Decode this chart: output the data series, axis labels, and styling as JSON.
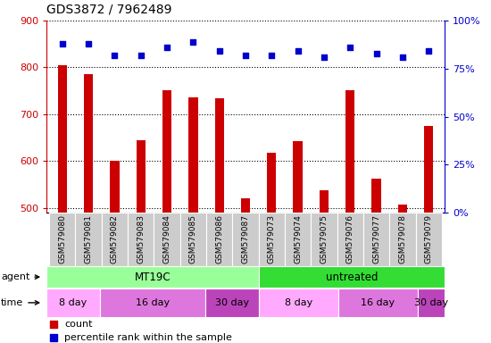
{
  "title": "GDS3872 / 7962489",
  "samples": [
    "GSM579080",
    "GSM579081",
    "GSM579082",
    "GSM579083",
    "GSM579084",
    "GSM579085",
    "GSM579086",
    "GSM579087",
    "GSM579073",
    "GSM579074",
    "GSM579075",
    "GSM579076",
    "GSM579077",
    "GSM579078",
    "GSM579079"
  ],
  "counts": [
    805,
    785,
    600,
    645,
    752,
    737,
    735,
    520,
    618,
    642,
    537,
    752,
    563,
    507,
    675
  ],
  "percentiles": [
    88,
    88,
    82,
    82,
    86,
    89,
    84,
    82,
    82,
    84,
    81,
    86,
    83,
    81,
    84
  ],
  "ylim_left": [
    490,
    900
  ],
  "ylim_right": [
    0,
    100
  ],
  "yticks_left": [
    500,
    600,
    700,
    800,
    900
  ],
  "yticks_right": [
    0,
    25,
    50,
    75,
    100
  ],
  "bar_color": "#cc0000",
  "dot_color": "#0000cc",
  "agent_groups": [
    {
      "label": "MT19C",
      "start": 0,
      "end": 8,
      "color": "#99ff99"
    },
    {
      "label": "untreated",
      "start": 8,
      "end": 15,
      "color": "#33dd33"
    }
  ],
  "time_groups": [
    {
      "label": "8 day",
      "start": 0,
      "end": 2,
      "color": "#ffaaff"
    },
    {
      "label": "16 day",
      "start": 2,
      "end": 6,
      "color": "#dd77dd"
    },
    {
      "label": "30 day",
      "start": 6,
      "end": 8,
      "color": "#bb44bb"
    },
    {
      "label": "8 day",
      "start": 8,
      "end": 11,
      "color": "#ffaaff"
    },
    {
      "label": "16 day",
      "start": 11,
      "end": 14,
      "color": "#dd77dd"
    },
    {
      "label": "30 day",
      "start": 14,
      "end": 15,
      "color": "#bb44bb"
    }
  ],
  "legend_count_label": "count",
  "legend_pct_label": "percentile rank within the sample",
  "agent_label": "agent",
  "time_label": "time",
  "bar_width": 0.35,
  "left_tick_color": "#cc0000",
  "right_tick_color": "#0000cc",
  "xtick_bg": "#cccccc",
  "chart_bg": "#ffffff",
  "border_color": "#000000"
}
